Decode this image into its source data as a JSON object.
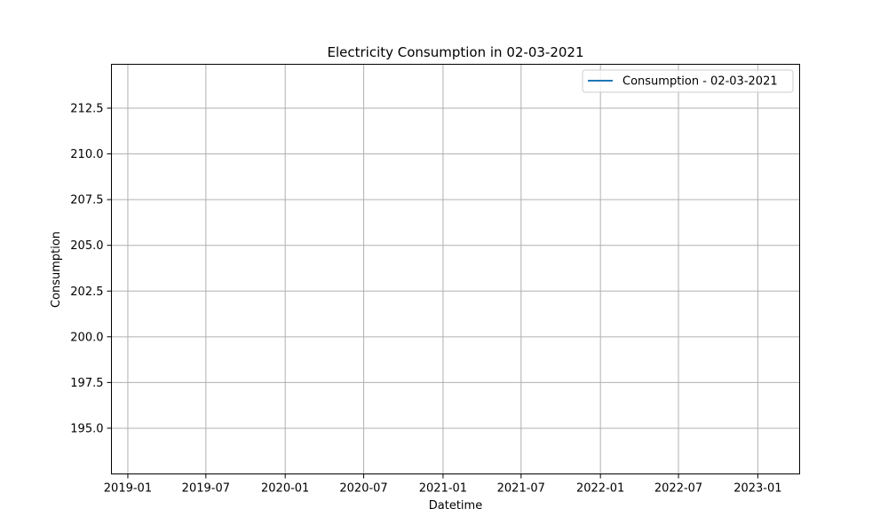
{
  "chart_data": {
    "type": "line",
    "title": "Electricity Consumption in 02-03-2021",
    "xlabel": "Datetime",
    "ylabel": "Consumption",
    "x_ticks": [
      "2019-01",
      "2019-07",
      "2020-01",
      "2020-07",
      "2021-01",
      "2021-07",
      "2022-01",
      "2022-07",
      "2023-01"
    ],
    "y_ticks": [
      "195.0",
      "197.5",
      "200.0",
      "202.5",
      "205.0",
      "207.5",
      "210.0",
      "212.5"
    ],
    "xlim": [
      "2018-11-24",
      "2023-04-08"
    ],
    "ylim": [
      192.5,
      214.9
    ],
    "grid": true,
    "legend_position": "top-right",
    "series": [
      {
        "name": "Consumption - 02-03-2021",
        "color": "#1f77b4",
        "points": []
      }
    ]
  }
}
